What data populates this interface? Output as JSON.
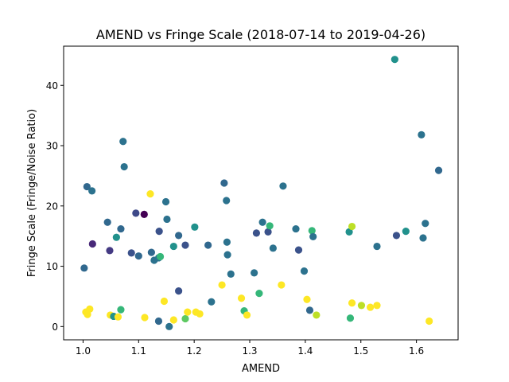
{
  "chart_data": {
    "type": "scatter",
    "title": "AMEND vs Fringe Scale (2018-07-14 to 2019-04-26)",
    "xlabel": "AMEND",
    "ylabel": "Fringe Scale (Fringe/Noise Ratio)",
    "xlim": [
      0.965,
      1.675
    ],
    "ylim": [
      -2.2,
      46.5
    ],
    "xticks": [
      1.0,
      1.1,
      1.2,
      1.3,
      1.4,
      1.5,
      1.6
    ],
    "xtick_labels": [
      "1.0",
      "1.1",
      "1.2",
      "1.3",
      "1.4",
      "1.5",
      "1.6"
    ],
    "yticks": [
      0,
      10,
      20,
      30,
      40
    ],
    "ytick_labels": [
      "0",
      "10",
      "20",
      "30",
      "40"
    ],
    "grid": false,
    "colormap": "viridis",
    "points": [
      {
        "x": 1.002,
        "y": 9.7,
        "c": "#31688e"
      },
      {
        "x": 1.007,
        "y": 23.2,
        "c": "#31688e"
      },
      {
        "x": 1.016,
        "y": 22.5,
        "c": "#2c728e"
      },
      {
        "x": 1.017,
        "y": 13.7,
        "c": "#482878"
      },
      {
        "x": 1.044,
        "y": 17.3,
        "c": "#31688e"
      },
      {
        "x": 1.048,
        "y": 12.6,
        "c": "#443a83"
      },
      {
        "x": 1.06,
        "y": 14.8,
        "c": "#21918c"
      },
      {
        "x": 1.068,
        "y": 16.2,
        "c": "#31688e"
      },
      {
        "x": 1.072,
        "y": 30.7,
        "c": "#2c728e"
      },
      {
        "x": 1.074,
        "y": 26.5,
        "c": "#2c728e"
      },
      {
        "x": 1.087,
        "y": 12.2,
        "c": "#3b528b"
      },
      {
        "x": 1.095,
        "y": 18.8,
        "c": "#3e4989"
      },
      {
        "x": 1.1,
        "y": 11.7,
        "c": "#31688e"
      },
      {
        "x": 1.11,
        "y": 18.6,
        "c": "#440154"
      },
      {
        "x": 1.123,
        "y": 12.3,
        "c": "#31688e"
      },
      {
        "x": 1.128,
        "y": 11.0,
        "c": "#2c728e"
      },
      {
        "x": 1.136,
        "y": 11.4,
        "c": "#2c728e"
      },
      {
        "x": 1.137,
        "y": 15.8,
        "c": "#3b528b"
      },
      {
        "x": 1.139,
        "y": 11.6,
        "c": "#35b779"
      },
      {
        "x": 1.149,
        "y": 20.7,
        "c": "#2c728e"
      },
      {
        "x": 1.151,
        "y": 17.8,
        "c": "#2c728e"
      },
      {
        "x": 1.163,
        "y": 13.3,
        "c": "#21918c"
      },
      {
        "x": 1.172,
        "y": 15.1,
        "c": "#31688e"
      },
      {
        "x": 1.172,
        "y": 5.9,
        "c": "#3b528b"
      },
      {
        "x": 1.184,
        "y": 13.5,
        "c": "#3b528b"
      },
      {
        "x": 1.201,
        "y": 16.5,
        "c": "#21918c"
      },
      {
        "x": 1.225,
        "y": 13.5,
        "c": "#31688e"
      },
      {
        "x": 1.231,
        "y": 4.1,
        "c": "#2c728e"
      },
      {
        "x": 1.254,
        "y": 23.8,
        "c": "#31688e"
      },
      {
        "x": 1.258,
        "y": 20.9,
        "c": "#2c728e"
      },
      {
        "x": 1.259,
        "y": 14.0,
        "c": "#2c728e"
      },
      {
        "x": 1.26,
        "y": 11.9,
        "c": "#2c728e"
      },
      {
        "x": 1.266,
        "y": 8.7,
        "c": "#2c728e"
      },
      {
        "x": 1.308,
        "y": 8.9,
        "c": "#2c728e"
      },
      {
        "x": 1.312,
        "y": 15.5,
        "c": "#3b528b"
      },
      {
        "x": 1.323,
        "y": 17.3,
        "c": "#2c728e"
      },
      {
        "x": 1.333,
        "y": 15.7,
        "c": "#3b528b"
      },
      {
        "x": 1.336,
        "y": 16.7,
        "c": "#35b779"
      },
      {
        "x": 1.342,
        "y": 13.0,
        "c": "#2c728e"
      },
      {
        "x": 1.36,
        "y": 23.3,
        "c": "#2c728e"
      },
      {
        "x": 1.383,
        "y": 16.2,
        "c": "#2c728e"
      },
      {
        "x": 1.388,
        "y": 12.7,
        "c": "#3b528b"
      },
      {
        "x": 1.398,
        "y": 9.2,
        "c": "#2c728e"
      },
      {
        "x": 1.408,
        "y": 2.7,
        "c": "#31688e"
      },
      {
        "x": 1.412,
        "y": 15.9,
        "c": "#35b779"
      },
      {
        "x": 1.414,
        "y": 14.9,
        "c": "#2c728e"
      },
      {
        "x": 1.479,
        "y": 15.7,
        "c": "#21918c"
      },
      {
        "x": 1.484,
        "y": 16.6,
        "c": "#bddf26"
      },
      {
        "x": 1.529,
        "y": 13.3,
        "c": "#2c728e"
      },
      {
        "x": 1.561,
        "y": 44.3,
        "c": "#21918c"
      },
      {
        "x": 1.564,
        "y": 15.1,
        "c": "#3b528b"
      },
      {
        "x": 1.581,
        "y": 15.8,
        "c": "#21918c"
      },
      {
        "x": 1.609,
        "y": 31.8,
        "c": "#2c728e"
      },
      {
        "x": 1.612,
        "y": 14.7,
        "c": "#2c728e"
      },
      {
        "x": 1.616,
        "y": 17.1,
        "c": "#2c728e"
      },
      {
        "x": 1.64,
        "y": 25.9,
        "c": "#31688e"
      },
      {
        "x": 1.121,
        "y": 22.0,
        "c": "#fde725"
      },
      {
        "x": 1.005,
        "y": 2.4,
        "c": "#fde725"
      },
      {
        "x": 1.008,
        "y": 2.0,
        "c": "#fde725"
      },
      {
        "x": 1.012,
        "y": 2.9,
        "c": "#fde725"
      },
      {
        "x": 1.049,
        "y": 1.9,
        "c": "#fde725"
      },
      {
        "x": 1.055,
        "y": 1.7,
        "c": "#21918c"
      },
      {
        "x": 1.063,
        "y": 1.6,
        "c": "#fde725"
      },
      {
        "x": 1.068,
        "y": 2.8,
        "c": "#35b779"
      },
      {
        "x": 1.111,
        "y": 1.5,
        "c": "#fde725"
      },
      {
        "x": 1.136,
        "y": 0.9,
        "c": "#31688e"
      },
      {
        "x": 1.146,
        "y": 4.2,
        "c": "#fde725"
      },
      {
        "x": 1.155,
        "y": 0.0,
        "c": "#2c728e"
      },
      {
        "x": 1.163,
        "y": 1.1,
        "c": "#fde725"
      },
      {
        "x": 1.184,
        "y": 1.3,
        "c": "#5ec962"
      },
      {
        "x": 1.188,
        "y": 2.4,
        "c": "#fde725"
      },
      {
        "x": 1.203,
        "y": 2.4,
        "c": "#fde725"
      },
      {
        "x": 1.21,
        "y": 2.1,
        "c": "#fde725"
      },
      {
        "x": 1.25,
        "y": 6.9,
        "c": "#fde725"
      },
      {
        "x": 1.285,
        "y": 4.7,
        "c": "#fde725"
      },
      {
        "x": 1.29,
        "y": 2.6,
        "c": "#35b779"
      },
      {
        "x": 1.295,
        "y": 1.9,
        "c": "#fde725"
      },
      {
        "x": 1.317,
        "y": 5.5,
        "c": "#35b779"
      },
      {
        "x": 1.357,
        "y": 6.9,
        "c": "#fde725"
      },
      {
        "x": 1.403,
        "y": 4.5,
        "c": "#fde725"
      },
      {
        "x": 1.42,
        "y": 1.9,
        "c": "#bddf26"
      },
      {
        "x": 1.481,
        "y": 1.4,
        "c": "#35b779"
      },
      {
        "x": 1.484,
        "y": 3.9,
        "c": "#fde725"
      },
      {
        "x": 1.501,
        "y": 3.5,
        "c": "#bddf26"
      },
      {
        "x": 1.517,
        "y": 3.2,
        "c": "#fde725"
      },
      {
        "x": 1.529,
        "y": 3.5,
        "c": "#fde725"
      },
      {
        "x": 1.623,
        "y": 0.9,
        "c": "#fde725"
      }
    ]
  }
}
